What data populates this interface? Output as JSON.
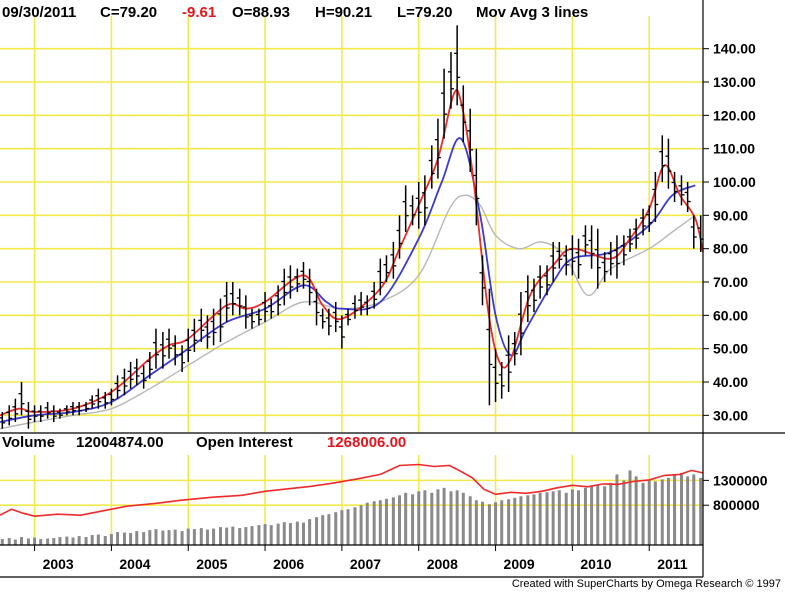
{
  "header": {
    "date": "09/30/2011",
    "close": "C=79.20",
    "change": "-9.61",
    "open": "O=88.93",
    "high": "H=90.21",
    "low": "L=79.20",
    "study": "Mov Avg 3 lines"
  },
  "volume_header": {
    "volume_label": "Volume",
    "volume_value": "12004874.00",
    "oi_label": "Open Interest",
    "oi_value": "1268006.00"
  },
  "credit": "Created with SuperCharts by Omega Research © 1997",
  "colors": {
    "grid": "#f2ea4a",
    "ma_fast": "#ee2a2a",
    "ma_mid": "#3a3ad4",
    "ma_slow": "#b8b8b8",
    "bars": "#000000",
    "volume_bars": "#8a8a8a",
    "open_interest": "#ee2a2a"
  },
  "chart_data": [
    {
      "type": "line",
      "subtype": "ohlc-bars-with-moving-averages",
      "title": "",
      "xlabel": "",
      "ylabel": "",
      "ylim": [
        25,
        148
      ],
      "yticks": [
        "140.00",
        "130.00",
        "120.00",
        "110.00",
        "100.00",
        "90.00",
        "80.00",
        "70.00",
        "60.00",
        "50.00",
        "40.00",
        "30.00"
      ],
      "ytick_values": [
        140,
        130,
        120,
        110,
        100,
        90,
        80,
        70,
        60,
        50,
        40,
        30
      ],
      "xticks": [
        "2003",
        "2004",
        "2005",
        "2006",
        "2007",
        "2008",
        "2009",
        "2010",
        "2011"
      ],
      "xtick_values": [
        2003.0,
        2004.0,
        2005.0,
        2006.0,
        2007.0,
        2008.0,
        2009.0,
        2010.0,
        2011.0
      ],
      "xlim": [
        2002.55,
        2011.7
      ],
      "grid": true,
      "bars": [
        {
          "x": 2002.58,
          "h": 31,
          "l": 26
        },
        {
          "x": 2002.67,
          "h": 33,
          "l": 27
        },
        {
          "x": 2002.75,
          "h": 35,
          "l": 28
        },
        {
          "x": 2002.83,
          "h": 40,
          "l": 30
        },
        {
          "x": 2002.92,
          "h": 34,
          "l": 26
        },
        {
          "x": 2003.0,
          "h": 33,
          "l": 28
        },
        {
          "x": 2003.08,
          "h": 33,
          "l": 28
        },
        {
          "x": 2003.17,
          "h": 34,
          "l": 29
        },
        {
          "x": 2003.25,
          "h": 33,
          "l": 28
        },
        {
          "x": 2003.33,
          "h": 32,
          "l": 29
        },
        {
          "x": 2003.42,
          "h": 33,
          "l": 30
        },
        {
          "x": 2003.5,
          "h": 34,
          "l": 30
        },
        {
          "x": 2003.58,
          "h": 34,
          "l": 30
        },
        {
          "x": 2003.67,
          "h": 34,
          "l": 31
        },
        {
          "x": 2003.75,
          "h": 36,
          "l": 32
        },
        {
          "x": 2003.83,
          "h": 38,
          "l": 32
        },
        {
          "x": 2003.92,
          "h": 37,
          "l": 32
        },
        {
          "x": 2004.0,
          "h": 38,
          "l": 33
        },
        {
          "x": 2004.08,
          "h": 42,
          "l": 35
        },
        {
          "x": 2004.17,
          "h": 44,
          "l": 36
        },
        {
          "x": 2004.25,
          "h": 46,
          "l": 38
        },
        {
          "x": 2004.33,
          "h": 47,
          "l": 39
        },
        {
          "x": 2004.42,
          "h": 45,
          "l": 38
        },
        {
          "x": 2004.5,
          "h": 49,
          "l": 41
        },
        {
          "x": 2004.58,
          "h": 56,
          "l": 44
        },
        {
          "x": 2004.67,
          "h": 55,
          "l": 44
        },
        {
          "x": 2004.75,
          "h": 56,
          "l": 47
        },
        {
          "x": 2004.83,
          "h": 54,
          "l": 45
        },
        {
          "x": 2004.92,
          "h": 51,
          "l": 43
        },
        {
          "x": 2005.0,
          "h": 56,
          "l": 46
        },
        {
          "x": 2005.08,
          "h": 59,
          "l": 49
        },
        {
          "x": 2005.17,
          "h": 62,
          "l": 52
        },
        {
          "x": 2005.25,
          "h": 60,
          "l": 50
        },
        {
          "x": 2005.33,
          "h": 62,
          "l": 51
        },
        {
          "x": 2005.42,
          "h": 65,
          "l": 52
        },
        {
          "x": 2005.5,
          "h": 70,
          "l": 58
        },
        {
          "x": 2005.58,
          "h": 70,
          "l": 60
        },
        {
          "x": 2005.67,
          "h": 68,
          "l": 60
        },
        {
          "x": 2005.75,
          "h": 66,
          "l": 56
        },
        {
          "x": 2005.83,
          "h": 62,
          "l": 56
        },
        {
          "x": 2005.92,
          "h": 62,
          "l": 57
        },
        {
          "x": 2006.0,
          "h": 67,
          "l": 58
        },
        {
          "x": 2006.08,
          "h": 65,
          "l": 59
        },
        {
          "x": 2006.17,
          "h": 69,
          "l": 60
        },
        {
          "x": 2006.25,
          "h": 74,
          "l": 63
        },
        {
          "x": 2006.33,
          "h": 75,
          "l": 65
        },
        {
          "x": 2006.42,
          "h": 74,
          "l": 67
        },
        {
          "x": 2006.5,
          "h": 76,
          "l": 68
        },
        {
          "x": 2006.58,
          "h": 74,
          "l": 63
        },
        {
          "x": 2006.67,
          "h": 68,
          "l": 57
        },
        {
          "x": 2006.75,
          "h": 62,
          "l": 56
        },
        {
          "x": 2006.83,
          "h": 62,
          "l": 54
        },
        {
          "x": 2006.92,
          "h": 64,
          "l": 55
        },
        {
          "x": 2007.0,
          "h": 60,
          "l": 50
        },
        {
          "x": 2007.08,
          "h": 62,
          "l": 57
        },
        {
          "x": 2007.17,
          "h": 66,
          "l": 59
        },
        {
          "x": 2007.25,
          "h": 67,
          "l": 60
        },
        {
          "x": 2007.33,
          "h": 66,
          "l": 60
        },
        {
          "x": 2007.42,
          "h": 70,
          "l": 62
        },
        {
          "x": 2007.5,
          "h": 77,
          "l": 66
        },
        {
          "x": 2007.58,
          "h": 78,
          "l": 70
        },
        {
          "x": 2007.67,
          "h": 82,
          "l": 71
        },
        {
          "x": 2007.75,
          "h": 90,
          "l": 77
        },
        {
          "x": 2007.83,
          "h": 99,
          "l": 85
        },
        {
          "x": 2007.92,
          "h": 96,
          "l": 87
        },
        {
          "x": 2008.0,
          "h": 100,
          "l": 86
        },
        {
          "x": 2008.08,
          "h": 102,
          "l": 87
        },
        {
          "x": 2008.17,
          "h": 111,
          "l": 98
        },
        {
          "x": 2008.25,
          "h": 119,
          "l": 101
        },
        {
          "x": 2008.33,
          "h": 134,
          "l": 113
        },
        {
          "x": 2008.42,
          "h": 139,
          "l": 122
        },
        {
          "x": 2008.5,
          "h": 147,
          "l": 123
        },
        {
          "x": 2008.58,
          "h": 129,
          "l": 112
        },
        {
          "x": 2008.67,
          "h": 122,
          "l": 103
        },
        {
          "x": 2008.75,
          "h": 110,
          "l": 87
        },
        {
          "x": 2008.83,
          "h": 78,
          "l": 63
        },
        {
          "x": 2008.92,
          "h": 68,
          "l": 33
        },
        {
          "x": 2009.0,
          "h": 50,
          "l": 34
        },
        {
          "x": 2009.08,
          "h": 46,
          "l": 35
        },
        {
          "x": 2009.17,
          "h": 54,
          "l": 37
        },
        {
          "x": 2009.25,
          "h": 55,
          "l": 45
        },
        {
          "x": 2009.33,
          "h": 67,
          "l": 48
        },
        {
          "x": 2009.42,
          "h": 72,
          "l": 58
        },
        {
          "x": 2009.5,
          "h": 71,
          "l": 61
        },
        {
          "x": 2009.58,
          "h": 75,
          "l": 65
        },
        {
          "x": 2009.67,
          "h": 75,
          "l": 66
        },
        {
          "x": 2009.75,
          "h": 82,
          "l": 70
        },
        {
          "x": 2009.83,
          "h": 82,
          "l": 74
        },
        {
          "x": 2009.92,
          "h": 81,
          "l": 72
        },
        {
          "x": 2010.0,
          "h": 84,
          "l": 72
        },
        {
          "x": 2010.08,
          "h": 83,
          "l": 71
        },
        {
          "x": 2010.17,
          "h": 87,
          "l": 78
        },
        {
          "x": 2010.25,
          "h": 87,
          "l": 74
        },
        {
          "x": 2010.33,
          "h": 86,
          "l": 68
        },
        {
          "x": 2010.42,
          "h": 79,
          "l": 70
        },
        {
          "x": 2010.5,
          "h": 82,
          "l": 72
        },
        {
          "x": 2010.58,
          "h": 84,
          "l": 71
        },
        {
          "x": 2010.67,
          "h": 84,
          "l": 75
        },
        {
          "x": 2010.75,
          "h": 86,
          "l": 79
        },
        {
          "x": 2010.83,
          "h": 89,
          "l": 80
        },
        {
          "x": 2010.92,
          "h": 92,
          "l": 84
        },
        {
          "x": 2011.0,
          "h": 93,
          "l": 85
        },
        {
          "x": 2011.08,
          "h": 103,
          "l": 88
        },
        {
          "x": 2011.17,
          "h": 114,
          "l": 100
        },
        {
          "x": 2011.25,
          "h": 113,
          "l": 98
        },
        {
          "x": 2011.33,
          "h": 103,
          "l": 94
        },
        {
          "x": 2011.42,
          "h": 102,
          "l": 93
        },
        {
          "x": 2011.5,
          "h": 100,
          "l": 91
        },
        {
          "x": 2011.58,
          "h": 90,
          "l": 80
        },
        {
          "x": 2011.67,
          "h": 90,
          "l": 79
        }
      ],
      "series": [
        {
          "color_key": "ma_fast",
          "x": [
            2002.55,
            2002.8,
            2003.0,
            2003.5,
            2004.0,
            2004.5,
            2004.75,
            2005.0,
            2005.5,
            2005.75,
            2006.0,
            2006.5,
            2006.75,
            2007.0,
            2007.5,
            2007.75,
            2008.0,
            2008.25,
            2008.45,
            2008.55,
            2008.7,
            2008.9,
            2009.05,
            2009.2,
            2009.45,
            2009.75,
            2010.0,
            2010.5,
            2010.75,
            2011.0,
            2011.2,
            2011.4,
            2011.6,
            2011.7
          ],
          "values": [
            30,
            32,
            31,
            32,
            37,
            47,
            51,
            53,
            63,
            62,
            64,
            72,
            63,
            59,
            68,
            80,
            93,
            107,
            126,
            124,
            103,
            62,
            46,
            47,
            66,
            75,
            80,
            77,
            83,
            92,
            105,
            96,
            89,
            79
          ]
        },
        {
          "color_key": "ma_mid",
          "x": [
            2002.55,
            2003.0,
            2003.5,
            2004.0,
            2004.5,
            2005.0,
            2005.5,
            2006.0,
            2006.5,
            2006.8,
            2007.0,
            2007.5,
            2008.0,
            2008.3,
            2008.55,
            2008.8,
            2009.0,
            2009.2,
            2009.4,
            2009.75,
            2010.0,
            2010.5,
            2011.0,
            2011.3,
            2011.6
          ],
          "values": [
            28,
            30,
            31,
            34,
            42,
            50,
            58,
            62,
            69,
            64,
            62,
            64,
            83,
            100,
            113,
            90,
            60,
            48,
            56,
            70,
            77,
            79,
            87,
            96,
            99
          ]
        },
        {
          "color_key": "ma_slow",
          "x": [
            2002.55,
            2003.0,
            2003.5,
            2004.0,
            2004.5,
            2005.0,
            2005.5,
            2006.0,
            2006.5,
            2007.0,
            2007.5,
            2008.0,
            2008.4,
            2008.6,
            2008.8,
            2009.0,
            2009.3,
            2009.6,
            2009.9,
            2010.2,
            2010.5,
            2011.0,
            2011.3,
            2011.6
          ],
          "values": [
            26,
            28,
            30,
            32,
            38,
            45,
            52,
            58,
            64,
            62,
            64,
            72,
            92,
            96,
            93,
            84,
            80,
            82,
            78,
            66,
            74,
            80,
            85,
            90
          ]
        }
      ]
    },
    {
      "type": "bar",
      "subtype": "volume-and-open-interest",
      "title": "",
      "ylabel": "",
      "yticks": [
        "1300000",
        "800000"
      ],
      "ytick_values": [
        1300000,
        800000
      ],
      "ylim": [
        0,
        1750000
      ],
      "grid": true,
      "volume_x": [
        2002.58,
        2002.67,
        2002.75,
        2002.83,
        2002.92,
        2003.0,
        2003.08,
        2003.17,
        2003.25,
        2003.33,
        2003.42,
        2003.5,
        2003.58,
        2003.67,
        2003.75,
        2003.83,
        2003.92,
        2004.0,
        2004.08,
        2004.17,
        2004.25,
        2004.33,
        2004.42,
        2004.5,
        2004.58,
        2004.67,
        2004.75,
        2004.83,
        2004.92,
        2005.0,
        2005.08,
        2005.17,
        2005.25,
        2005.33,
        2005.42,
        2005.5,
        2005.58,
        2005.67,
        2005.75,
        2005.83,
        2005.92,
        2006.0,
        2006.08,
        2006.17,
        2006.25,
        2006.33,
        2006.42,
        2006.5,
        2006.58,
        2006.67,
        2006.75,
        2006.83,
        2006.92,
        2007.0,
        2007.08,
        2007.17,
        2007.25,
        2007.33,
        2007.42,
        2007.5,
        2007.58,
        2007.67,
        2007.75,
        2007.83,
        2007.92,
        2008.0,
        2008.08,
        2008.17,
        2008.25,
        2008.33,
        2008.42,
        2008.5,
        2008.58,
        2008.67,
        2008.75,
        2008.83,
        2008.92,
        2009.0,
        2009.08,
        2009.17,
        2009.25,
        2009.33,
        2009.42,
        2009.5,
        2009.58,
        2009.67,
        2009.75,
        2009.83,
        2009.92,
        2010.0,
        2010.08,
        2010.17,
        2010.25,
        2010.33,
        2010.42,
        2010.5,
        2010.58,
        2010.67,
        2010.75,
        2010.83,
        2010.92,
        2011.0,
        2011.08,
        2011.17,
        2011.25,
        2011.33,
        2011.42,
        2011.5,
        2011.58,
        2011.67
      ],
      "volume": [
        120000,
        140000,
        110000,
        160000,
        130000,
        150000,
        120000,
        130000,
        140000,
        160000,
        170000,
        150000,
        180000,
        160000,
        200000,
        210000,
        180000,
        220000,
        260000,
        250000,
        240000,
        280000,
        260000,
        300000,
        320000,
        290000,
        300000,
        310000,
        280000,
        330000,
        320000,
        340000,
        310000,
        330000,
        360000,
        350000,
        370000,
        340000,
        360000,
        380000,
        400000,
        420000,
        400000,
        430000,
        460000,
        440000,
        470000,
        450000,
        520000,
        560000,
        600000,
        620000,
        660000,
        700000,
        720000,
        760000,
        800000,
        850000,
        880000,
        900000,
        930000,
        960000,
        1000000,
        1050000,
        1020000,
        1080000,
        1100000,
        1050000,
        1120000,
        1150000,
        1080000,
        1100000,
        1050000,
        980000,
        900000,
        870000,
        820000,
        860000,
        900000,
        920000,
        950000,
        980000,
        1000000,
        1020000,
        1050000,
        1060000,
        1080000,
        1100000,
        1050000,
        1120000,
        1100000,
        1150000,
        1200000,
        1220000,
        1180000,
        1250000,
        1420000,
        1300000,
        1500000,
        1380000,
        1250000,
        1300000,
        1280000,
        1320000,
        1350000,
        1400000,
        1450000,
        1380000,
        1420000,
        1350000
      ],
      "open_interest_x": [
        2002.55,
        2002.7,
        2002.85,
        2003.0,
        2003.3,
        2003.6,
        2003.9,
        2004.2,
        2004.6,
        2004.9,
        2005.3,
        2005.7,
        2006.0,
        2006.3,
        2006.6,
        2006.9,
        2007.2,
        2007.5,
        2007.75,
        2008.0,
        2008.2,
        2008.4,
        2008.55,
        2008.7,
        2008.85,
        2009.0,
        2009.2,
        2009.4,
        2009.6,
        2009.8,
        2010.0,
        2010.2,
        2010.4,
        2010.6,
        2010.8,
        2011.0,
        2011.2,
        2011.4,
        2011.55,
        2011.7
      ],
      "open_interest": [
        600000,
        720000,
        640000,
        580000,
        620000,
        600000,
        690000,
        780000,
        840000,
        900000,
        960000,
        1000000,
        1080000,
        1130000,
        1180000,
        1250000,
        1330000,
        1420000,
        1600000,
        1620000,
        1580000,
        1600000,
        1480000,
        1350000,
        1120000,
        1020000,
        1060000,
        1040000,
        1080000,
        1150000,
        1200000,
        1170000,
        1230000,
        1220000,
        1280000,
        1310000,
        1400000,
        1420000,
        1500000,
        1450000
      ]
    }
  ]
}
